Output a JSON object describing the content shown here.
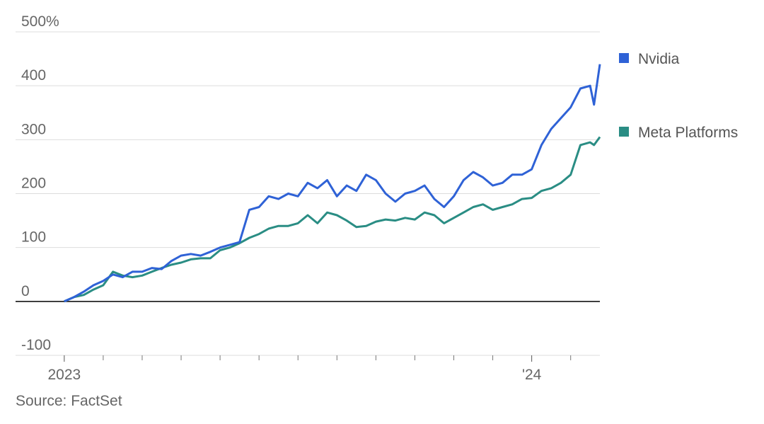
{
  "chart_data": {
    "type": "line",
    "x": [
      0,
      0.25,
      0.5,
      0.75,
      1,
      1.25,
      1.5,
      1.75,
      2,
      2.25,
      2.5,
      2.75,
      3,
      3.25,
      3.5,
      3.75,
      4,
      4.25,
      4.5,
      4.75,
      5,
      5.25,
      5.5,
      5.75,
      6,
      6.25,
      6.5,
      6.75,
      7,
      7.25,
      7.5,
      7.75,
      8,
      8.25,
      8.5,
      8.75,
      9,
      9.25,
      9.5,
      9.75,
      10,
      10.25,
      10.5,
      10.75,
      11,
      11.25,
      11.5,
      11.75,
      12,
      12.25,
      12.5,
      12.75,
      13,
      13.25,
      13.5,
      13.6,
      13.75
    ],
    "series": [
      {
        "name": "Nvidia",
        "color": "#2f62d6",
        "values": [
          0,
          8,
          18,
          30,
          38,
          50,
          45,
          55,
          55,
          62,
          60,
          75,
          85,
          88,
          85,
          92,
          100,
          105,
          110,
          170,
          175,
          195,
          190,
          200,
          195,
          220,
          210,
          225,
          195,
          215,
          205,
          235,
          225,
          200,
          185,
          200,
          205,
          215,
          190,
          175,
          195,
          225,
          240,
          230,
          215,
          220,
          235,
          235,
          245,
          290,
          320,
          340,
          360,
          395,
          400,
          365,
          440
        ]
      },
      {
        "name": "Meta Platforms",
        "color": "#2a8d84",
        "values": [
          0,
          8,
          12,
          22,
          30,
          55,
          48,
          45,
          48,
          55,
          62,
          68,
          72,
          78,
          80,
          80,
          95,
          100,
          108,
          118,
          125,
          135,
          140,
          140,
          145,
          160,
          145,
          165,
          160,
          150,
          138,
          140,
          148,
          152,
          150,
          155,
          152,
          165,
          160,
          145,
          155,
          165,
          175,
          180,
          170,
          175,
          180,
          190,
          192,
          205,
          210,
          220,
          235,
          290,
          295,
          290,
          305
        ]
      }
    ],
    "xlim": [
      -1.25,
      13.75
    ],
    "xticks": [
      {
        "value": 0,
        "label": "2023"
      },
      {
        "value": 12,
        "label": "'24"
      }
    ],
    "x_minor_ticks": [
      1,
      2,
      3,
      4,
      5,
      6,
      7,
      8,
      9,
      10,
      11,
      13
    ],
    "ylim": [
      -100,
      500
    ],
    "yticks": [
      -100,
      0,
      100,
      200,
      300,
      400,
      {
        "value": 500,
        "label": "500%"
      }
    ],
    "grid": true,
    "legend": "right",
    "source": "Source: FactSet"
  }
}
